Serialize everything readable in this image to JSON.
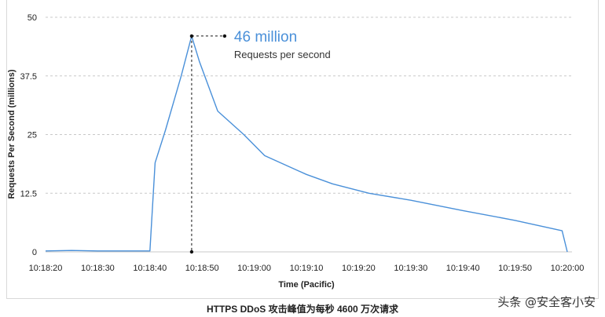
{
  "chart_data": {
    "type": "line",
    "title": "",
    "xlabel": "Time (Pacific)",
    "ylabel": "Requests Per Second (millions)",
    "ylim": [
      0,
      50
    ],
    "yticks": [
      "0",
      "12.5",
      "25",
      "37.5",
      "50"
    ],
    "ytick_values": [
      0,
      12.5,
      25,
      37.5,
      50
    ],
    "xlim": [
      "10:18:20",
      "10:20:00"
    ],
    "xticks": [
      "10:18:20",
      "10:18:30",
      "10:18:40",
      "10:18:50",
      "10:19:00",
      "10:19:10",
      "10:19:20",
      "10:19:30",
      "10:19:40",
      "10:19:50",
      "10:20:00"
    ],
    "grid": "horizontal dashed",
    "series": [
      {
        "color": "#4a90d9",
        "x": [
          "10:18:20",
          "10:18:25",
          "10:18:30",
          "10:18:40",
          "10:18:41",
          "10:18:43",
          "10:18:46",
          "10:18:48",
          "10:18:49.5",
          "10:18:53",
          "10:18:58",
          "10:19:02",
          "10:19:07",
          "10:19:10",
          "10:19:15",
          "10:19:22",
          "10:19:30",
          "10:19:40",
          "10:19:50",
          "10:19:59",
          "10:20:00"
        ],
        "values": [
          0.2,
          0.3,
          0.2,
          0.2,
          19,
          26,
          37.5,
          46,
          40.5,
          30,
          25,
          20.5,
          18,
          16.5,
          14.5,
          12.5,
          11,
          8.8,
          6.7,
          4.5,
          0
        ]
      }
    ],
    "annotation": {
      "x": "10:18:48",
      "value": 46,
      "label_big": "46 million",
      "label_small": "Requests per second"
    }
  },
  "caption": "HTTPS DDoS 攻击峰值为每秒 4600 万次请求",
  "watermark": "头条 @安全客小安",
  "colors": {
    "line": "#4a90d9",
    "grid": "#c8c8c8",
    "annotation": "#4a90d9"
  }
}
